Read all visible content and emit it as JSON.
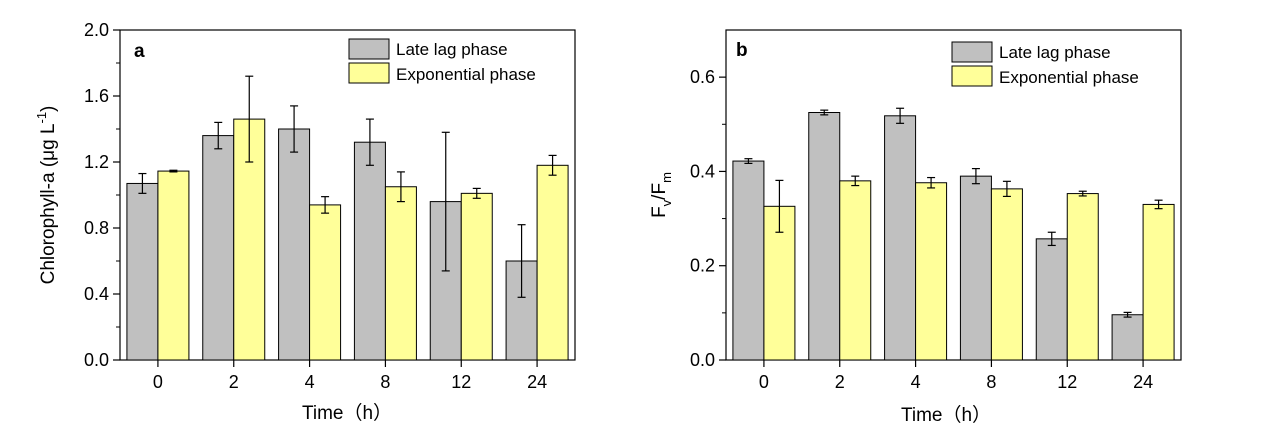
{
  "chart_data": [
    {
      "type": "bar",
      "panel_label": "a",
      "categories": [
        "0",
        "2",
        "4",
        "8",
        "12",
        "24"
      ],
      "xlabel": "Time（h）",
      "ylabel": "Chlorophyll-a (μg L",
      "ylabel_sup": "-1",
      "ylabel_end": ")",
      "ylim": [
        0.0,
        2.0
      ],
      "yticks": [
        "0.0",
        "0.4",
        "0.8",
        "1.2",
        "1.6",
        "2.0"
      ],
      "ytick_values": [
        0.0,
        0.4,
        0.8,
        1.2,
        1.6,
        2.0
      ],
      "legend_position": "top-right",
      "series": [
        {
          "name": "Late lag phase",
          "color": "#c0c0c0",
          "values": [
            1.07,
            1.36,
            1.4,
            1.32,
            0.96,
            0.6
          ],
          "errors": [
            0.06,
            0.08,
            0.14,
            0.14,
            0.42,
            0.22
          ]
        },
        {
          "name": "Exponential phase",
          "color": "#ffff99",
          "values": [
            1.145,
            1.46,
            0.94,
            1.05,
            1.01,
            1.18
          ],
          "errors": [
            0.005,
            0.26,
            0.05,
            0.09,
            0.03,
            0.06
          ]
        }
      ]
    },
    {
      "type": "bar",
      "panel_label": "b",
      "categories": [
        "0",
        "2",
        "4",
        "8",
        "12",
        "24"
      ],
      "xlabel": "Time（h）",
      "ylabel_main": "F",
      "ylabel_sub1": "v",
      "ylabel_mid": "/F",
      "ylabel_sub2": "m",
      "ylim": [
        0.0,
        0.7
      ],
      "yticks": [
        "0.0",
        "0.2",
        "0.4",
        "0.6"
      ],
      "ytick_values": [
        0.0,
        0.2,
        0.4,
        0.6
      ],
      "legend_position": "top-right",
      "series": [
        {
          "name": "Late lag phase",
          "color": "#c0c0c0",
          "values": [
            0.422,
            0.525,
            0.518,
            0.39,
            0.257,
            0.096
          ],
          "errors": [
            0.005,
            0.005,
            0.016,
            0.016,
            0.014,
            0.005
          ]
        },
        {
          "name": "Exponential phase",
          "color": "#ffff99",
          "values": [
            0.326,
            0.38,
            0.376,
            0.363,
            0.353,
            0.33
          ],
          "errors": [
            0.055,
            0.01,
            0.011,
            0.016,
            0.005,
            0.009
          ]
        }
      ]
    }
  ]
}
